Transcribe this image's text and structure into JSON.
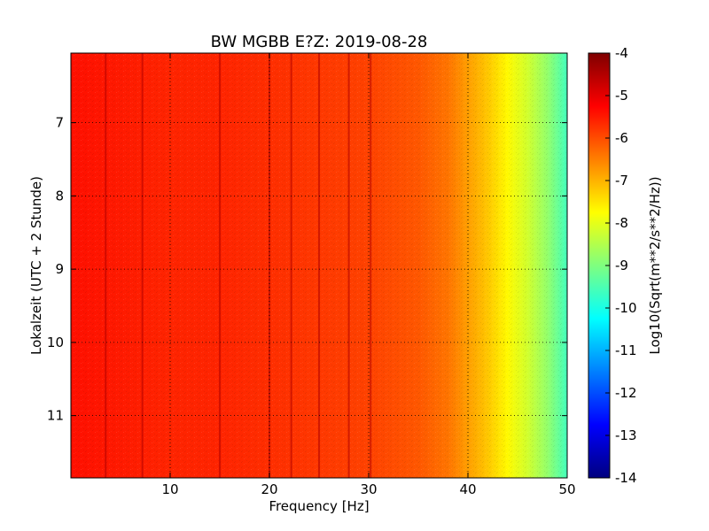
{
  "chart_data": {
    "type": "heatmap",
    "title": "BW MGBB E?Z: 2019-08-28",
    "xlabel": "Frequency [Hz]",
    "ylabel": "Lokalzeit (UTC + 2 Stunde)",
    "xlim": [
      0,
      50
    ],
    "ylim": [
      11.85,
      6.05
    ],
    "y_inverted": true,
    "x_ticks": [
      "10",
      "20",
      "30",
      "40",
      "50"
    ],
    "y_ticks": [
      "7",
      "8",
      "9",
      "10",
      "11"
    ],
    "grid": true,
    "colormap": "jet",
    "colorbar": {
      "label": "Log10(Sqrt(m**2/s**2/Hz))",
      "range": [
        -14,
        -4
      ],
      "ticks": [
        "-4",
        "-5",
        "-6",
        "-7",
        "-8",
        "-9",
        "-10",
        "-11",
        "-12",
        "-13",
        "-14"
      ]
    },
    "spectrum_profile": {
      "frequency_hz": [
        0,
        5,
        10,
        15,
        20,
        25,
        30,
        35,
        38,
        40,
        42,
        44,
        46,
        48,
        50
      ],
      "log10_amplitude": [
        -5.4,
        -5.5,
        -5.6,
        -5.6,
        -5.7,
        -5.8,
        -5.9,
        -6.1,
        -6.4,
        -6.8,
        -7.2,
        -7.7,
        -8.2,
        -8.8,
        -9.6
      ]
    },
    "persistent_lines_hz": [
      3.5,
      7.2,
      15.0,
      20.0,
      22.2,
      25.0,
      28.0,
      30.2
    ]
  }
}
